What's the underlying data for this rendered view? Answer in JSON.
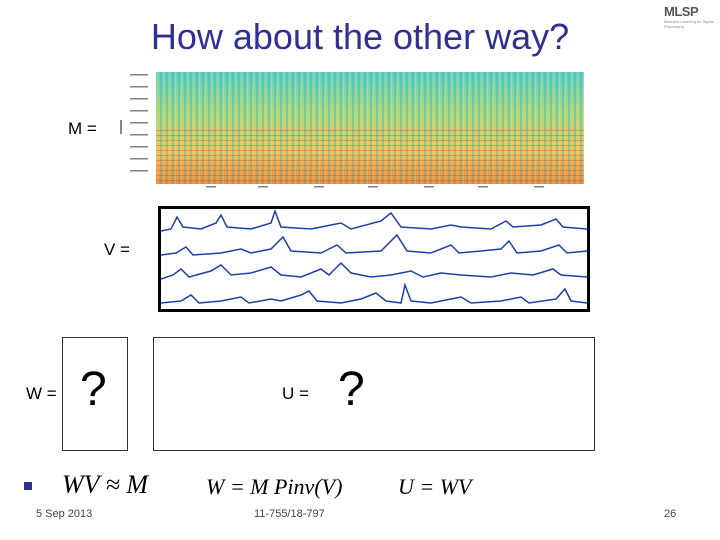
{
  "title": "How about the other way?",
  "logo": {
    "text": "MLSP",
    "subtitle": "Machine Learning for Signal Processing"
  },
  "labels": {
    "m": "M =",
    "v": "V =",
    "w": "W =",
    "u": "U ="
  },
  "question_mark": "?",
  "equations": {
    "approx": "WV ≈ M",
    "w_formula": "W = M Pinv(V)",
    "u_formula": "U = WV"
  },
  "footer": {
    "date": "5 Sep 2013",
    "course": "11-755/18-797",
    "page": "26"
  },
  "colors": {
    "title": "#2e3192",
    "bullet": "#2e3192",
    "waveform": "#1f3fa8"
  }
}
